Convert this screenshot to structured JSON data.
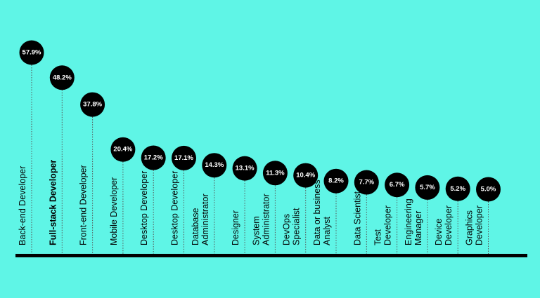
{
  "chart_data": {
    "type": "bubble-lollipop",
    "categories": [
      "Back-end Developer",
      "Full-stack Developer",
      "Front-end Developer",
      "Mobile Developer",
      "Desktop Developer",
      "Desktop Developer",
      "Database Administrator",
      "Designer",
      "System Administrator",
      "DevOps Specialist",
      "Data or business Analyst",
      "Data Scientist",
      "Test Developer",
      "Engineering Manager",
      "Device Developer",
      "Graphics Developer"
    ],
    "values": [
      57.9,
      48.2,
      37.8,
      20.4,
      17.2,
      17.1,
      14.3,
      13.1,
      11.3,
      10.4,
      8.2,
      7.7,
      6.7,
      5.7,
      5.2,
      5.0
    ],
    "value_labels": [
      "57.9%",
      "48.2%",
      "37.8%",
      "20.4%",
      "17.2%",
      "17.1%",
      "14.3%",
      "13.1%",
      "11.3%",
      "10.4%",
      "8.2%",
      "7.7%",
      "6.7%",
      "5.7%",
      "5.2%",
      "5.0%"
    ],
    "highlighted_category": "Full-stack Developer",
    "colors": {
      "background": "#5ff5e6",
      "bubble": "#000000",
      "value_text": "#ffffff",
      "label_text": "#000000"
    }
  }
}
